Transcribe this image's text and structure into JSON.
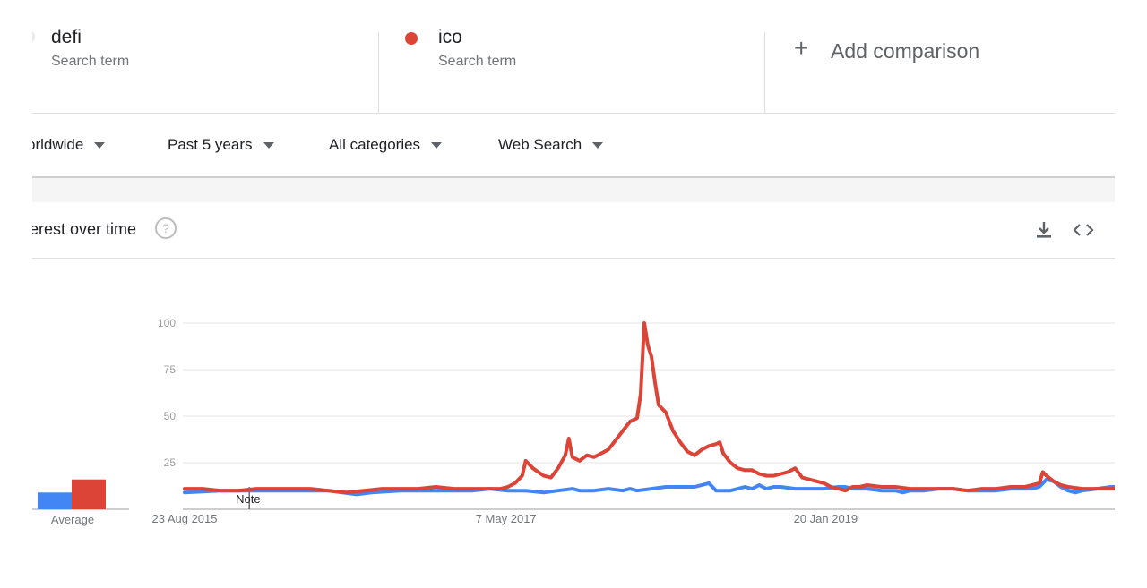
{
  "terms": [
    {
      "name": "defi",
      "sub": "Search term",
      "color": "#e8e8e8"
    },
    {
      "name": "ico",
      "sub": "Search term",
      "color": "#db4437"
    }
  ],
  "add_comparison": {
    "plus": "+",
    "label": "Add comparison"
  },
  "filters": {
    "region": "orldwide",
    "time": "Past 5 years",
    "category": "All categories",
    "search_type": "Web Search"
  },
  "section": {
    "title": "terest over time",
    "help": "?"
  },
  "icons": {
    "help": "help-circle-icon",
    "download": "download-icon",
    "embed": "code-embed-icon",
    "add": "plus-icon"
  },
  "chart_data": {
    "type": "line",
    "ylim": [
      0,
      100
    ],
    "yticks": [
      25,
      50,
      75,
      100
    ],
    "xticks": [
      {
        "label": "23 Aug 2015",
        "value": 0
      },
      {
        "label": "7 May 2017",
        "value": 89.5
      },
      {
        "label": "20 Jan 2019",
        "value": 178.5
      }
    ],
    "x_range": [
      0,
      259
    ],
    "note_label": "Note",
    "note_at": 18,
    "average": {
      "label": "Average",
      "values": [
        9,
        16
      ]
    },
    "series": [
      {
        "color": "#4285f4",
        "points": [
          [
            0,
            9
          ],
          [
            10,
            10
          ],
          [
            20,
            10
          ],
          [
            30,
            10
          ],
          [
            40,
            10
          ],
          [
            44,
            9
          ],
          [
            48,
            8
          ],
          [
            52,
            9
          ],
          [
            60,
            10
          ],
          [
            70,
            10
          ],
          [
            80,
            10
          ],
          [
            85,
            11
          ],
          [
            90,
            10
          ],
          [
            95,
            10
          ],
          [
            100,
            9
          ],
          [
            104,
            10
          ],
          [
            108,
            11
          ],
          [
            110,
            10
          ],
          [
            114,
            10
          ],
          [
            118,
            11
          ],
          [
            122,
            10
          ],
          [
            124,
            11
          ],
          [
            126,
            10
          ],
          [
            130,
            11
          ],
          [
            134,
            12
          ],
          [
            138,
            12
          ],
          [
            142,
            12
          ],
          [
            146,
            14
          ],
          [
            148,
            10
          ],
          [
            152,
            10
          ],
          [
            156,
            12
          ],
          [
            158,
            11
          ],
          [
            160,
            13
          ],
          [
            162,
            11
          ],
          [
            164,
            12
          ],
          [
            166,
            12
          ],
          [
            170,
            11
          ],
          [
            174,
            11
          ],
          [
            178,
            11
          ],
          [
            182,
            12
          ],
          [
            184,
            12
          ],
          [
            186,
            11
          ],
          [
            190,
            11
          ],
          [
            194,
            10
          ],
          [
            198,
            10
          ],
          [
            200,
            9
          ],
          [
            202,
            10
          ],
          [
            206,
            10
          ],
          [
            210,
            11
          ],
          [
            214,
            11
          ],
          [
            218,
            10
          ],
          [
            222,
            10
          ],
          [
            226,
            10
          ],
          [
            230,
            11
          ],
          [
            234,
            11
          ],
          [
            236,
            11
          ],
          [
            238,
            12
          ],
          [
            240,
            16
          ],
          [
            242,
            15
          ],
          [
            244,
            12
          ],
          [
            246,
            10
          ],
          [
            248,
            9
          ],
          [
            250,
            10
          ],
          [
            254,
            11
          ],
          [
            258,
            12
          ],
          [
            259,
            12
          ]
        ]
      },
      {
        "color": "#db4437",
        "points": [
          [
            0,
            11
          ],
          [
            5,
            11
          ],
          [
            10,
            10
          ],
          [
            15,
            10
          ],
          [
            20,
            11
          ],
          [
            25,
            11
          ],
          [
            30,
            11
          ],
          [
            35,
            11
          ],
          [
            40,
            10
          ],
          [
            45,
            9
          ],
          [
            50,
            10
          ],
          [
            55,
            11
          ],
          [
            60,
            11
          ],
          [
            65,
            11
          ],
          [
            70,
            12
          ],
          [
            75,
            11
          ],
          [
            80,
            11
          ],
          [
            85,
            11
          ],
          [
            88,
            11
          ],
          [
            90,
            12
          ],
          [
            92,
            14
          ],
          [
            94,
            18
          ],
          [
            95,
            26
          ],
          [
            97,
            22
          ],
          [
            100,
            18
          ],
          [
            102,
            17
          ],
          [
            104,
            22
          ],
          [
            106,
            29
          ],
          [
            107,
            38
          ],
          [
            108,
            28
          ],
          [
            110,
            26
          ],
          [
            112,
            29
          ],
          [
            114,
            28
          ],
          [
            116,
            30
          ],
          [
            118,
            32
          ],
          [
            120,
            37
          ],
          [
            122,
            42
          ],
          [
            124,
            47
          ],
          [
            126,
            49
          ],
          [
            127,
            62
          ],
          [
            128,
            100
          ],
          [
            129,
            88
          ],
          [
            130,
            82
          ],
          [
            131,
            68
          ],
          [
            132,
            56
          ],
          [
            134,
            52
          ],
          [
            136,
            42
          ],
          [
            138,
            36
          ],
          [
            140,
            31
          ],
          [
            142,
            29
          ],
          [
            144,
            32
          ],
          [
            146,
            34
          ],
          [
            148,
            35
          ],
          [
            149,
            36
          ],
          [
            150,
            30
          ],
          [
            152,
            25
          ],
          [
            154,
            22
          ],
          [
            156,
            21
          ],
          [
            158,
            21
          ],
          [
            160,
            19
          ],
          [
            162,
            18
          ],
          [
            164,
            18
          ],
          [
            166,
            19
          ],
          [
            168,
            20
          ],
          [
            170,
            22
          ],
          [
            172,
            17
          ],
          [
            174,
            16
          ],
          [
            176,
            15
          ],
          [
            178,
            14
          ],
          [
            180,
            12
          ],
          [
            182,
            11
          ],
          [
            184,
            10
          ],
          [
            186,
            12
          ],
          [
            188,
            12
          ],
          [
            190,
            13
          ],
          [
            194,
            12
          ],
          [
            198,
            12
          ],
          [
            202,
            11
          ],
          [
            206,
            11
          ],
          [
            210,
            11
          ],
          [
            214,
            11
          ],
          [
            218,
            10
          ],
          [
            222,
            11
          ],
          [
            226,
            11
          ],
          [
            230,
            12
          ],
          [
            234,
            12
          ],
          [
            236,
            13
          ],
          [
            238,
            14
          ],
          [
            239,
            20
          ],
          [
            240,
            18
          ],
          [
            242,
            15
          ],
          [
            244,
            13
          ],
          [
            246,
            12
          ],
          [
            250,
            11
          ],
          [
            254,
            11
          ],
          [
            258,
            11
          ],
          [
            259,
            11
          ]
        ]
      }
    ]
  }
}
